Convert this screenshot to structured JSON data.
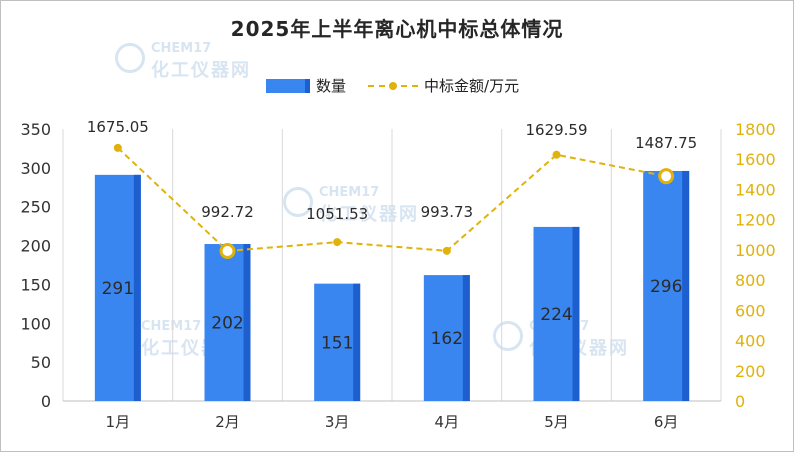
{
  "chart_data": {
    "type": "bar",
    "title": "2025年上半年离心机中标总体情况",
    "categories": [
      "1月",
      "2月",
      "3月",
      "4月",
      "5月",
      "6月"
    ],
    "series": [
      {
        "name": "数量",
        "type": "bar",
        "axis": "left",
        "values": [
          291,
          202,
          151,
          162,
          224,
          296
        ],
        "labels": [
          "291",
          "202",
          "151",
          "162",
          "224",
          "296"
        ]
      },
      {
        "name": "中标金额/万元",
        "type": "line",
        "axis": "right",
        "values": [
          1675.05,
          992.72,
          1051.53,
          993.73,
          1629.59,
          1487.75
        ],
        "labels": [
          "1675.05",
          "992.72",
          "1051.53",
          "993.73",
          "1629.59",
          "1487.75"
        ]
      }
    ],
    "y_left": {
      "min": 0,
      "max": 350,
      "ticks": [
        "0",
        "50",
        "100",
        "150",
        "200",
        "250",
        "300",
        "350"
      ]
    },
    "y_right": {
      "min": 0,
      "max": 1800,
      "ticks": [
        "0",
        "200",
        "400",
        "600",
        "800",
        "1000",
        "1200",
        "1400",
        "1600",
        "1800"
      ]
    },
    "grid": "vertical",
    "legend_position": "top-center",
    "colors": {
      "bar": "#3a86f0",
      "bar_edge": "#1e5fd0",
      "line": "#e0b20a",
      "right_axis_text": "#e0b20a"
    }
  },
  "watermark": {
    "brand_top": "CHEM17",
    "brand_bottom": "化工仪器网"
  }
}
